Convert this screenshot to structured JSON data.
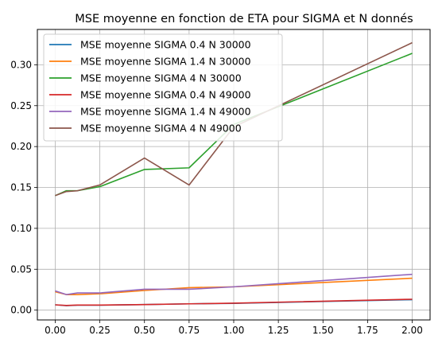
{
  "chart_data": {
    "type": "line",
    "title": "MSE moyenne en fonction de ETA pour SIGMA et N donnés",
    "xlabel": "",
    "ylabel": "",
    "xlim": [
      -0.1,
      2.1
    ],
    "ylim": [
      -0.012,
      0.3432
    ],
    "xticks": [
      0.0,
      0.25,
      0.5,
      0.75,
      1.0,
      1.25,
      1.5,
      1.75,
      2.0
    ],
    "xtick_labels": [
      "0.00",
      "0.25",
      "0.50",
      "0.75",
      "1.00",
      "1.25",
      "1.50",
      "1.75",
      "2.00"
    ],
    "yticks": [
      0.0,
      0.05,
      0.1,
      0.15,
      0.2,
      0.25,
      0.3
    ],
    "ytick_labels": [
      "0.00",
      "0.05",
      "0.10",
      "0.15",
      "0.20",
      "0.25",
      "0.30"
    ],
    "grid": true,
    "legend_position": "top-left",
    "x": [
      0.0,
      0.0625,
      0.125,
      0.25,
      0.5,
      0.75,
      1.0,
      2.0
    ],
    "series": [
      {
        "name": "MSE moyenne SIGMA 0.4 N 30000",
        "color": "#1f77b4",
        "values": [
          0.0065,
          0.0055,
          0.006,
          0.006,
          0.0068,
          0.0077,
          0.0083,
          0.0128
        ]
      },
      {
        "name": "MSE moyenne SIGMA 1.4 N 30000",
        "color": "#ff7f0e",
        "values": [
          0.0225,
          0.019,
          0.019,
          0.02,
          0.024,
          0.0275,
          0.0285,
          0.039
        ]
      },
      {
        "name": "MSE moyenne SIGMA 4 N 30000",
        "color": "#2ca02c",
        "values": [
          0.14,
          0.146,
          0.146,
          0.151,
          0.172,
          0.174,
          0.227,
          0.314
        ]
      },
      {
        "name": "MSE moyenne SIGMA 0.4 N 49000",
        "color": "#d62728",
        "values": [
          0.0065,
          0.0057,
          0.0062,
          0.0062,
          0.0068,
          0.0077,
          0.0085,
          0.0133
        ]
      },
      {
        "name": "MSE moyenne SIGMA 1.4 N 49000",
        "color": "#9467bd",
        "values": [
          0.0235,
          0.019,
          0.021,
          0.021,
          0.0255,
          0.0255,
          0.0285,
          0.0438
        ]
      },
      {
        "name": "MSE moyenne SIGMA 4 N 49000",
        "color": "#8c564b",
        "values": [
          0.14,
          0.145,
          0.146,
          0.153,
          0.186,
          0.153,
          0.224,
          0.327
        ]
      }
    ]
  }
}
